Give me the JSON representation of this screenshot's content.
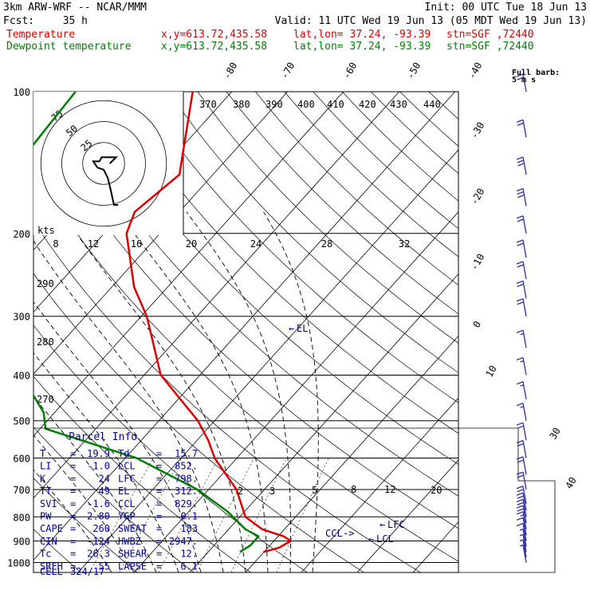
{
  "header": {
    "model": "3km ARW-WRF -- NCAR/MMM",
    "init": "Init: 00 UTC Tue 18 Jun 13",
    "fcst_label": "Fcst:",
    "fcst_value": "35 h",
    "valid": "Valid: 11 UTC Wed 19 Jun 13 (05 MDT Wed 19 Jun 13)",
    "temp_name": "Temperature",
    "dew_name": "Dewpoint temperature",
    "xy": "x,y=613.72,435.58",
    "latlon": "lat,lon= 37.24, -93.39",
    "stn": "stn=SGF ,72440"
  },
  "colors": {
    "temperature": "#e00000",
    "dewpoint": "#008000",
    "text": "#000000",
    "dashed": "#000000",
    "panel": "#000080",
    "barb": "#3030a0"
  },
  "chart_data": {
    "type": "line",
    "subtype": "skew-T log-p sounding",
    "pressure_axis": {
      "label": "",
      "ticks": [
        100,
        200,
        300,
        400,
        500,
        600,
        700,
        800,
        900,
        1000
      ],
      "scale": "log",
      "range": [
        1000,
        100
      ]
    },
    "temperature_axis_ticks": [
      -80,
      -70,
      -60,
      -50,
      -40,
      -30,
      -20,
      -10,
      0,
      10,
      30,
      40
    ],
    "series": [
      {
        "name": "Temperature",
        "p": [
          100,
          150,
          180,
          200,
          260,
          300,
          400,
          500,
          550,
          600,
          700,
          800,
          850,
          880,
          900,
          930,
          950
        ],
        "t": [
          -67,
          -56,
          -58,
          -56,
          -46,
          -39,
          -27,
          -13,
          -8,
          -4,
          5,
          11,
          16,
          21,
          23,
          22,
          19.9
        ]
      },
      {
        "name": "Dewpoint temperature",
        "p": [
          100,
          130,
          150,
          180,
          200,
          240,
          260,
          300,
          340,
          400,
          480,
          520,
          600,
          700,
          780,
          850,
          880,
          920,
          950
        ],
        "t": [
          -88,
          -87,
          -93,
          -79,
          -80,
          -73,
          -68,
          -75,
          -63,
          -52,
          -42,
          -39,
          -18,
          -2,
          7,
          13,
          16.5,
          16.5,
          15.7
        ]
      }
    ],
    "levels": [
      {
        "label": "EL",
        "p": 312
      },
      {
        "label": "LFC",
        "p": 798
      },
      {
        "label": "LCL",
        "p": 852
      },
      {
        "label": "CCL",
        "p": 829
      }
    ],
    "potential_temperature_labels": [
      "370",
      "380",
      "390",
      "400",
      "410",
      "420",
      "430",
      "440"
    ],
    "mixing_ratio_labels": [
      "2",
      "3",
      "5",
      "8",
      "12",
      "20"
    ],
    "thetae_labels": [
      "290",
      "280",
      "270"
    ],
    "hodograph": {
      "units": "kts",
      "ring_labels": [
        "75",
        "50",
        "25"
      ],
      "speed_axis_labels": [
        "8",
        "12",
        "16",
        "20",
        "24",
        "28",
        "32"
      ],
      "u": [
        7,
        5,
        3,
        2,
        0,
        -3,
        -5,
        -2,
        -1,
        3,
        6,
        3
      ],
      "v": [
        -20,
        -20,
        -11,
        -7,
        -3,
        -2,
        1,
        1,
        3,
        3,
        3,
        0
      ]
    },
    "wind_barbs": {
      "header": "Full barb:",
      "value": "5 m s",
      "p": [
        1000,
        975,
        950,
        925,
        900,
        875,
        850,
        825,
        800,
        775,
        750,
        700,
        650,
        600,
        550,
        500,
        450,
        400,
        350,
        300,
        275,
        250,
        225,
        200,
        175,
        150,
        125,
        100
      ],
      "speed_ms": [
        3,
        4,
        4,
        3,
        5,
        5,
        8,
        10,
        10,
        10,
        10,
        10,
        12,
        12,
        10,
        8,
        8,
        8,
        8,
        10,
        12,
        12,
        12,
        12,
        15,
        15,
        12,
        10
      ]
    }
  },
  "parcel_info": {
    "title": "Parcel Info",
    "rows": [
      [
        "T",
        "19.9",
        "Td",
        "15.7"
      ],
      [
        "LI",
        "-1.0",
        "LCL",
        "852."
      ],
      [
        "K",
        "24",
        "LFC",
        "798."
      ],
      [
        "TT",
        "49",
        "EL",
        "312."
      ],
      [
        "SVI",
        "-1.6",
        "CCL",
        "829."
      ],
      [
        "PW",
        "2.80",
        "YGP",
        "0.1"
      ],
      [
        "CAPE",
        "260",
        "SWEAT",
        "183"
      ],
      [
        "CIN",
        "-124",
        "HWBZ",
        "2947."
      ],
      [
        "Tc",
        "26.3",
        "SHEAR",
        "12."
      ],
      [
        "SREH",
        "55",
        "LAPSE",
        "6.1"
      ]
    ],
    "cell_label": "CELL",
    "cell_value": "324/17"
  }
}
